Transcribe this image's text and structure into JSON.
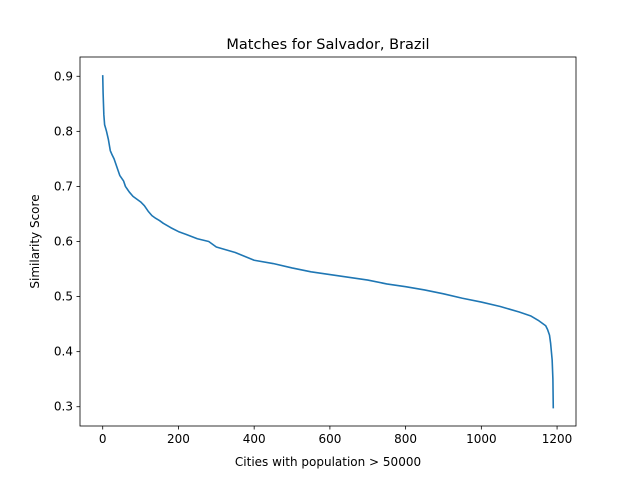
{
  "chart_data": {
    "type": "line",
    "title": "Matches for Salvador, Brazil",
    "xlabel": "Cities with population > 50000",
    "ylabel": "Similarity Score",
    "xlim": [
      -60,
      1250
    ],
    "ylim": [
      0.265,
      0.935
    ],
    "xticks": [
      0,
      200,
      400,
      600,
      800,
      1000,
      1200
    ],
    "yticks": [
      0.3,
      0.4,
      0.5,
      0.6,
      0.7,
      0.8,
      0.9
    ],
    "grid": false,
    "series": [
      {
        "color": "#1f77b4",
        "x": [
          0,
          1,
          2,
          3,
          5,
          8,
          10,
          15,
          20,
          25,
          30,
          35,
          40,
          45,
          50,
          55,
          60,
          70,
          80,
          90,
          100,
          110,
          120,
          130,
          140,
          150,
          160,
          180,
          200,
          220,
          250,
          280,
          300,
          350,
          400,
          450,
          500,
          550,
          600,
          650,
          700,
          750,
          800,
          850,
          900,
          950,
          1000,
          1050,
          1100,
          1130,
          1150,
          1160,
          1170,
          1175,
          1180,
          1183,
          1185,
          1187,
          1189,
          1190
        ],
        "y": [
          0.902,
          0.87,
          0.85,
          0.83,
          0.812,
          0.805,
          0.8,
          0.785,
          0.765,
          0.757,
          0.75,
          0.74,
          0.73,
          0.72,
          0.715,
          0.71,
          0.7,
          0.69,
          0.682,
          0.677,
          0.672,
          0.665,
          0.655,
          0.647,
          0.642,
          0.638,
          0.633,
          0.625,
          0.618,
          0.613,
          0.605,
          0.6,
          0.59,
          0.58,
          0.566,
          0.56,
          0.552,
          0.545,
          0.54,
          0.535,
          0.53,
          0.523,
          0.518,
          0.512,
          0.505,
          0.497,
          0.49,
          0.482,
          0.472,
          0.465,
          0.457,
          0.452,
          0.447,
          0.44,
          0.43,
          0.415,
          0.4,
          0.385,
          0.35,
          0.297
        ]
      }
    ]
  }
}
